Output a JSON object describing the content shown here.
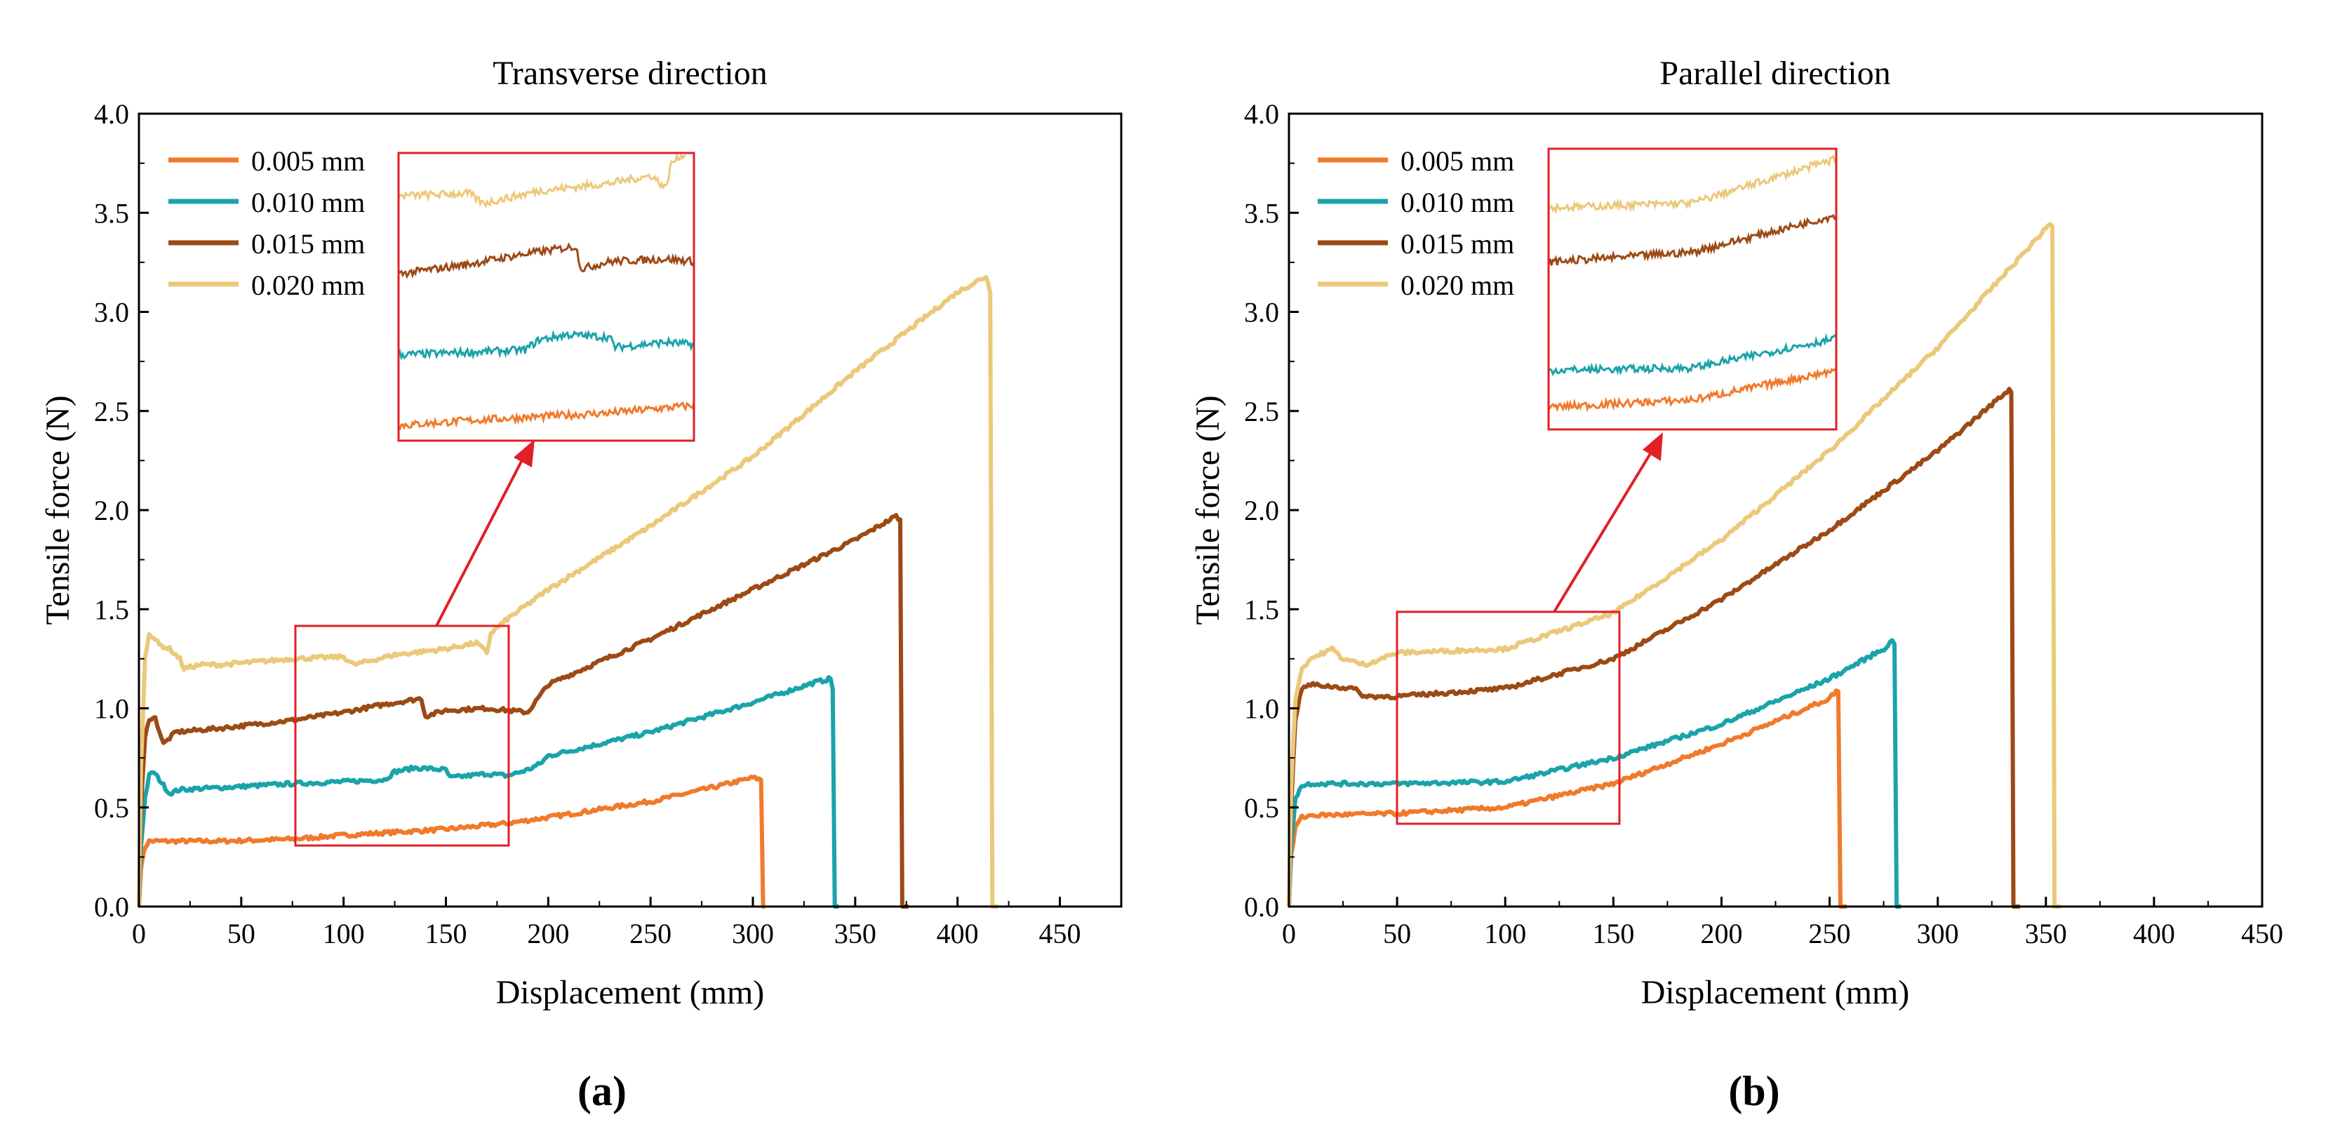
{
  "chart_data": [
    {
      "type": "line",
      "panel_label": "(a)",
      "title": "Transverse direction",
      "xlabel": "Displacement (mm)",
      "ylabel": "Tensile force (N)",
      "xlim": [
        0,
        480
      ],
      "ylim": [
        0,
        4.0
      ],
      "xticks": [
        "0",
        "50",
        "100",
        "150",
        "200",
        "250",
        "300",
        "350",
        "400",
        "450"
      ],
      "yticks": [
        "0.0",
        "0.5",
        "1.0",
        "1.5",
        "2.0",
        "2.5",
        "3.0",
        "3.5",
        "4.0"
      ],
      "legend_position": "top-left",
      "series": [
        {
          "name": "0.005 mm",
          "color": "#f07a2c",
          "x": [
            0,
            1,
            3,
            5,
            8,
            15,
            40,
            75,
            100,
            150,
            180,
            200,
            250,
            280,
            300,
            304,
            304.5,
            306
          ],
          "y": [
            0,
            0.2,
            0.3,
            0.33,
            0.33,
            0.33,
            0.33,
            0.34,
            0.36,
            0.39,
            0.42,
            0.45,
            0.53,
            0.6,
            0.65,
            0.64,
            0,
            0
          ]
        },
        {
          "name": "0.010 mm",
          "color": "#1aa3ab",
          "x": [
            0,
            1,
            3,
            5,
            7,
            10,
            15,
            20,
            40,
            75,
            100,
            120,
            125,
            135,
            150,
            152,
            170,
            180,
            190,
            196,
            200,
            250,
            300,
            330,
            338,
            339,
            339.5,
            342
          ],
          "y": [
            0,
            0.3,
            0.55,
            0.66,
            0.68,
            0.64,
            0.57,
            0.59,
            0.6,
            0.62,
            0.63,
            0.64,
            0.68,
            0.7,
            0.69,
            0.65,
            0.67,
            0.66,
            0.69,
            0.72,
            0.76,
            0.88,
            1.03,
            1.13,
            1.15,
            1.1,
            0,
            0
          ]
        },
        {
          "name": "0.015 mm",
          "color": "#9c4a15",
          "x": [
            0,
            1,
            3,
            5,
            8,
            12,
            18,
            40,
            75,
            100,
            120,
            138,
            140,
            150,
            170,
            190,
            195,
            200,
            250,
            300,
            350,
            370,
            372,
            372.5,
            376
          ],
          "y": [
            0,
            0.5,
            0.85,
            0.95,
            0.95,
            0.82,
            0.88,
            0.9,
            0.94,
            0.98,
            1.02,
            1.05,
            0.96,
            0.99,
            1.0,
            0.98,
            1.05,
            1.12,
            1.35,
            1.6,
            1.85,
            1.97,
            1.95,
            0,
            0
          ]
        },
        {
          "name": "0.020 mm",
          "color": "#ecc87a",
          "x": [
            0,
            1,
            3,
            5,
            7,
            10,
            15,
            20,
            22,
            30,
            40,
            75,
            100,
            105,
            125,
            150,
            165,
            170,
            172,
            180,
            200,
            250,
            300,
            350,
            400,
            414,
            416,
            416.5,
            420
          ],
          "y": [
            0,
            0.7,
            1.25,
            1.38,
            1.36,
            1.32,
            1.3,
            1.25,
            1.2,
            1.22,
            1.22,
            1.25,
            1.26,
            1.22,
            1.27,
            1.3,
            1.33,
            1.28,
            1.38,
            1.45,
            1.6,
            1.92,
            2.27,
            2.7,
            3.1,
            3.18,
            3.1,
            0,
            0
          ]
        }
      ]
    },
    {
      "type": "line",
      "panel_label": "(b)",
      "title": "Parallel direction",
      "xlabel": "Displacement (mm)",
      "ylabel": "Tensile force (N)",
      "xlim": [
        0,
        450
      ],
      "ylim": [
        0,
        4.0
      ],
      "xticks": [
        "0",
        "50",
        "100",
        "150",
        "200",
        "250",
        "300",
        "350",
        "400",
        "450"
      ],
      "yticks": [
        "0.0",
        "0.5",
        "1.0",
        "1.5",
        "2.0",
        "2.5",
        "3.0",
        "3.5",
        "4.0"
      ],
      "legend_position": "top-left",
      "series": [
        {
          "name": "0.005 mm",
          "color": "#f07a2c",
          "x": [
            0,
            1,
            3,
            6,
            10,
            50,
            100,
            150,
            200,
            250,
            253,
            254.5,
            255,
            258
          ],
          "y": [
            0,
            0.25,
            0.4,
            0.45,
            0.46,
            0.47,
            0.5,
            0.62,
            0.82,
            1.05,
            1.09,
            1.08,
            0,
            0
          ]
        },
        {
          "name": "0.010 mm",
          "color": "#1aa3ab",
          "x": [
            0,
            1,
            3,
            6,
            10,
            50,
            100,
            150,
            200,
            250,
            275,
            279,
            280,
            280.5,
            283
          ],
          "y": [
            0,
            0.3,
            0.55,
            0.61,
            0.62,
            0.62,
            0.63,
            0.75,
            0.92,
            1.15,
            1.3,
            1.34,
            1.33,
            0,
            0
          ]
        },
        {
          "name": "0.015 mm",
          "color": "#9c4a15",
          "x": [
            0,
            1,
            3,
            6,
            10,
            30,
            35,
            50,
            100,
            150,
            200,
            250,
            300,
            330,
            333,
            334,
            334.5,
            338
          ],
          "y": [
            0,
            0.5,
            0.95,
            1.1,
            1.12,
            1.1,
            1.06,
            1.06,
            1.1,
            1.25,
            1.55,
            1.9,
            2.3,
            2.58,
            2.61,
            2.6,
            0,
            0
          ]
        },
        {
          "name": "0.020 mm",
          "color": "#ecc87a",
          "x": [
            0,
            1,
            3,
            6,
            10,
            20,
            25,
            35,
            50,
            100,
            150,
            200,
            250,
            300,
            350,
            352,
            353,
            353.5,
            357
          ],
          "y": [
            0,
            0.6,
            1.05,
            1.2,
            1.25,
            1.3,
            1.25,
            1.22,
            1.28,
            1.3,
            1.48,
            1.85,
            2.3,
            2.82,
            3.42,
            3.45,
            3.43,
            0,
            0
          ]
        }
      ]
    }
  ]
}
